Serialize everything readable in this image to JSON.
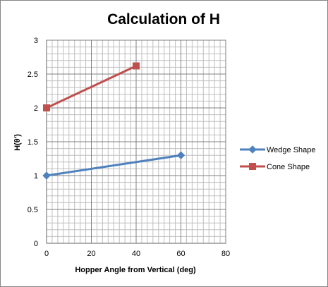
{
  "chart_data": {
    "type": "line",
    "title": "Calculation of H",
    "xlabel": "Hopper Angle from Vertical (deg)",
    "ylabel": "H(θ')",
    "xlim": [
      0,
      80
    ],
    "ylim": [
      0,
      3
    ],
    "x_ticks": [
      "0",
      "20",
      "40",
      "60",
      "80"
    ],
    "y_ticks": [
      "0",
      "0.5",
      "1",
      "1.5",
      "2",
      "2.5",
      "3"
    ],
    "grid": true,
    "legend_position": "right",
    "series": [
      {
        "name": "Wedge Shape",
        "color": "#4F81BD",
        "marker": "diamond",
        "points": [
          [
            0,
            1.0
          ],
          [
            60,
            1.3
          ]
        ]
      },
      {
        "name": "Cone Shape",
        "color": "#C0504D",
        "marker": "square",
        "points": [
          [
            0,
            2.0
          ],
          [
            40,
            2.62
          ]
        ]
      }
    ]
  }
}
